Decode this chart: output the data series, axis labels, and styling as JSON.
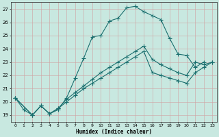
{
  "xlabel": "Humidex (Indice chaleur)",
  "bg_color": "#c8e8e0",
  "line_color": "#1a6e6e",
  "xlim": [
    -0.5,
    23.5
  ],
  "ylim": [
    18.5,
    27.5
  ],
  "yticks": [
    19,
    20,
    21,
    22,
    23,
    24,
    25,
    26,
    27
  ],
  "line1_x": [
    0,
    1,
    2,
    3,
    4,
    5,
    6,
    7,
    8,
    9,
    10,
    11,
    12,
    13,
    14,
    15,
    16,
    17,
    18,
    19,
    20,
    21,
    22
  ],
  "line1_y": [
    20.3,
    19.4,
    19.0,
    19.7,
    19.1,
    19.4,
    20.3,
    21.8,
    23.3,
    24.9,
    25.0,
    26.1,
    26.3,
    27.1,
    27.2,
    26.8,
    26.5,
    26.2,
    24.8,
    23.6,
    23.5,
    22.6,
    23.0
  ],
  "line2_x": [
    0,
    2,
    3,
    4,
    5,
    6,
    7,
    8,
    9,
    10,
    11,
    12,
    13,
    14,
    15,
    16,
    17,
    18,
    19,
    20,
    21,
    22,
    23
  ],
  "line2_y": [
    20.3,
    19.0,
    19.7,
    19.1,
    19.5,
    20.0,
    20.5,
    21.0,
    21.4,
    21.8,
    22.2,
    22.6,
    23.0,
    23.4,
    23.8,
    22.2,
    22.0,
    21.8,
    21.6,
    21.4,
    22.2,
    22.6,
    23.0
  ],
  "line3_x": [
    0,
    2,
    3,
    4,
    5,
    6,
    7,
    8,
    9,
    10,
    11,
    12,
    13,
    14,
    15,
    16,
    17,
    18,
    19,
    20,
    21,
    22,
    23
  ],
  "line3_y": [
    20.3,
    19.0,
    19.7,
    19.1,
    19.5,
    20.2,
    20.7,
    21.2,
    21.7,
    22.2,
    22.6,
    23.0,
    23.4,
    23.8,
    24.2,
    23.2,
    22.8,
    22.5,
    22.2,
    22.0,
    23.0,
    22.8,
    23.0
  ]
}
